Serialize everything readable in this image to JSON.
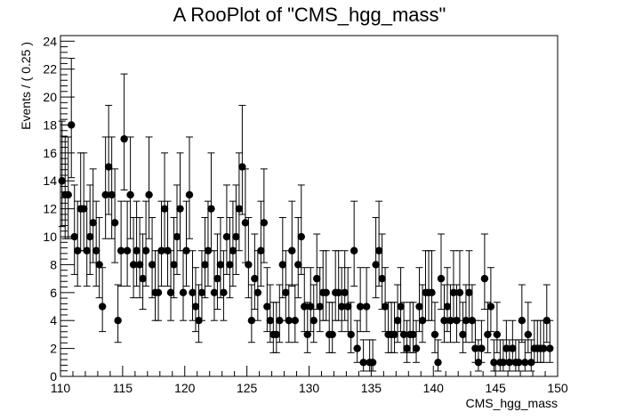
{
  "chart_data": {
    "type": "scatter",
    "title": "A RooPlot of \"CMS_hgg_mass\"",
    "xlabel": "CMS_hgg_mass",
    "ylabel": "Events / ( 0.25 )",
    "xlim": [
      110,
      150
    ],
    "ylim": [
      0,
      24.4
    ],
    "x_ticks": [
      "110",
      "115",
      "120",
      "125",
      "130",
      "135",
      "140",
      "145",
      "150"
    ],
    "y_ticks": [
      "0",
      "2",
      "4",
      "6",
      "8",
      "10",
      "12",
      "14",
      "16",
      "18",
      "20",
      "22",
      "24"
    ],
    "error_bars": "poisson",
    "grid": false,
    "series": [
      {
        "marker": "circle",
        "color": "#000000",
        "x0": 110.125,
        "bin_width": 0.25,
        "values": [
          14,
          13,
          13,
          18,
          10,
          9,
          12,
          12,
          9,
          10,
          11,
          9,
          8,
          5,
          13,
          15,
          13,
          11,
          4,
          9,
          17,
          9,
          13,
          8,
          9,
          8,
          7,
          9,
          13,
          8,
          6,
          6,
          9,
          12,
          9,
          6,
          8,
          10,
          12,
          6,
          9,
          13,
          6,
          5,
          4,
          6,
          8,
          9,
          12,
          6,
          7,
          8,
          6,
          10,
          8,
          9,
          10,
          12,
          15,
          11,
          8,
          4,
          7,
          6,
          9,
          11,
          5,
          4,
          3,
          3,
          4,
          8,
          6,
          4,
          9,
          4,
          8,
          10,
          5,
          3,
          5,
          4,
          7,
          5,
          6,
          6,
          3,
          3,
          6,
          6,
          5,
          6,
          5,
          3,
          9,
          2,
          5,
          1,
          5,
          1,
          1,
          8,
          9,
          7,
          5,
          3,
          3,
          3,
          4,
          5,
          3,
          2,
          3,
          3,
          2,
          5,
          4,
          6,
          6,
          6,
          3,
          1,
          7,
          4,
          5,
          4,
          6,
          4,
          6,
          3,
          4,
          6,
          4,
          2,
          1,
          2,
          7,
          3,
          5,
          1,
          3,
          1,
          1,
          2,
          1,
          2,
          1,
          1,
          4,
          1,
          3,
          1,
          2,
          2,
          2,
          2,
          4,
          2
        ]
      }
    ]
  }
}
